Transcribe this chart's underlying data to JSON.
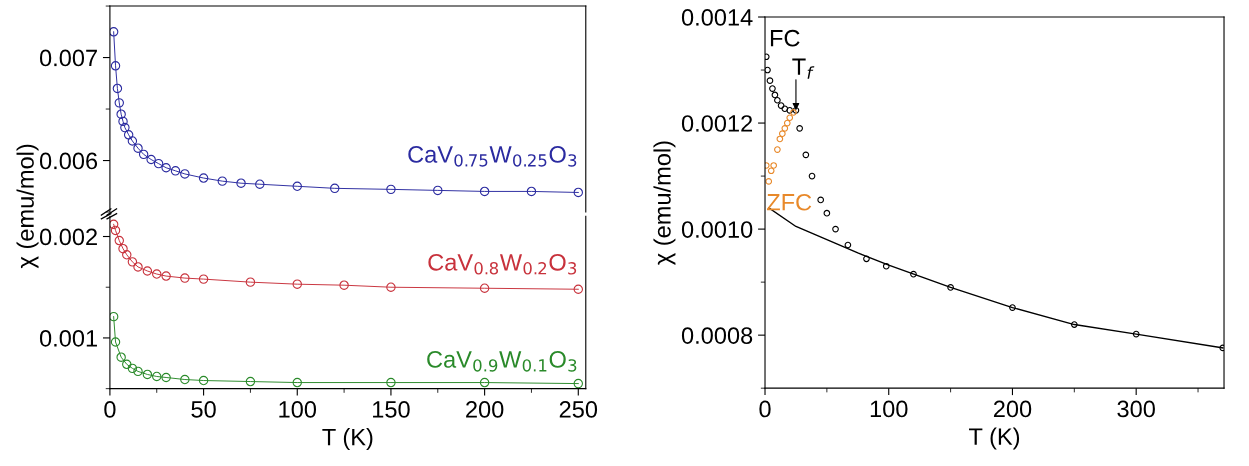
{
  "chart_data": [
    {
      "type": "line",
      "marker": "circle",
      "line_style": "solid",
      "grid": false,
      "legend": false,
      "tick_labels": "y",
      "xlim": [
        0,
        254
      ],
      "ylim": [
        0.0055,
        0.0075
      ],
      "yticks": [
        0.006,
        0.007
      ],
      "series": [
        {
          "name": "CaV$_{0.75}$W$_{0.25}$O$_{3}$",
          "color": "#2b2ba0",
          "x": [
            2,
            3,
            4,
            5,
            6,
            7,
            8,
            10,
            12,
            15,
            18,
            22,
            26,
            30,
            35,
            40,
            50,
            60,
            70,
            80,
            100,
            120,
            150,
            175,
            200,
            225,
            250
          ],
          "values": [
            0.00725,
            0.00692,
            0.0067,
            0.00656,
            0.00645,
            0.00638,
            0.00632,
            0.00625,
            0.00619,
            0.00612,
            0.00606,
            0.00601,
            0.00597,
            0.00593,
            0.0059,
            0.00587,
            0.00583,
            0.0058,
            0.00578,
            0.00577,
            0.00575,
            0.00573,
            0.00572,
            0.00571,
            0.0057,
            0.0057,
            0.00569
          ]
        }
      ]
    },
    {
      "type": "line",
      "marker": "circle",
      "line_style": "solid",
      "grid": false,
      "legend": false,
      "xlabel": "T (K)",
      "ylabel": "χ (emu/mol)",
      "xlim": [
        0,
        254
      ],
      "ylim": [
        0.0005,
        0.0022
      ],
      "xticks": [
        0,
        50,
        100,
        150,
        200,
        250
      ],
      "yticks": [
        0.001,
        0.002
      ],
      "series": [
        {
          "name": "CaV$_{0.8}$W$_{0.2}$O$_{3}$",
          "color": "#c8323c",
          "x": [
            2,
            3,
            5,
            7,
            9,
            12,
            15,
            20,
            25,
            30,
            40,
            50,
            75,
            100,
            125,
            150,
            200,
            250
          ],
          "values": [
            0.00212,
            0.00206,
            0.00196,
            0.00188,
            0.00182,
            0.00175,
            0.0017,
            0.00166,
            0.00163,
            0.00161,
            0.00159,
            0.00158,
            0.00155,
            0.00153,
            0.00152,
            0.0015,
            0.00149,
            0.00148
          ]
        },
        {
          "name": "CaV$_{0.9}$W$_{0.1}$O$_{3}$",
          "color": "#2a8a2a",
          "x": [
            2,
            3,
            6,
            9,
            12,
            15,
            20,
            25,
            30,
            40,
            50,
            75,
            100,
            150,
            200,
            250
          ],
          "values": [
            0.00121,
            0.00096,
            0.00081,
            0.00074,
            0.0007,
            0.00067,
            0.00064,
            0.00062,
            0.00061,
            0.00059,
            0.00058,
            0.00057,
            0.00056,
            0.00056,
            0.00056,
            0.00055
          ]
        }
      ]
    },
    {
      "type": "scatter",
      "marker": "circle",
      "grid": false,
      "legend": false,
      "xlabel": "T (K)",
      "ylabel": "χ (emu/mol)",
      "xlim": [
        0,
        371
      ],
      "ylim": [
        0.0007,
        0.0014
      ],
      "xticks": [
        0,
        100,
        200,
        300
      ],
      "yticks": [
        0.0008,
        {
          "value": 0.001,
          "label": "0.0010"
        },
        0.0012,
        0.0014
      ],
      "annotations": [
        {
          "text": "T$_{f}$",
          "x": 25,
          "y": 0.001224
        }
      ],
      "series": [
        {
          "name": "FC",
          "color": "#000000",
          "x": [
            1,
            2,
            4,
            6,
            8,
            10,
            13,
            16,
            20,
            25,
            28,
            33,
            38,
            45,
            50,
            57,
            67,
            82,
            98,
            120,
            150,
            200,
            250,
            300,
            370
          ],
          "values": [
            0.001325,
            0.0013,
            0.00128,
            0.001265,
            0.001253,
            0.001243,
            0.001233,
            0.001227,
            0.001224,
            0.001224,
            0.00119,
            0.00114,
            0.0011,
            0.001055,
            0.00103,
            0.001,
            0.00097,
            0.000944,
            0.00093,
            0.000915,
            0.00089,
            0.000852,
            0.00082,
            0.000802,
            0.000776
          ]
        },
        {
          "name": "ZFC",
          "color": "#e8892a",
          "x": [
            1,
            3,
            5,
            7,
            10,
            12,
            14,
            16,
            18,
            20,
            23
          ],
          "values": [
            0.00112,
            0.00109,
            0.00111,
            0.00112,
            0.00115,
            0.00117,
            0.00118,
            0.00119,
            0.0012,
            0.00121,
            0.00122
          ]
        },
        {
          "type": "line",
          "marker": "none",
          "color": "#000000",
          "x": [
            3,
            25,
            50,
            75,
            100,
            150,
            200,
            250,
            300,
            370
          ],
          "values": [
            0.00104,
            0.001005,
            0.00098,
            0.000955,
            0.000932,
            0.00089,
            0.000852,
            0.00082,
            0.000802,
            0.000776
          ]
        }
      ]
    }
  ]
}
